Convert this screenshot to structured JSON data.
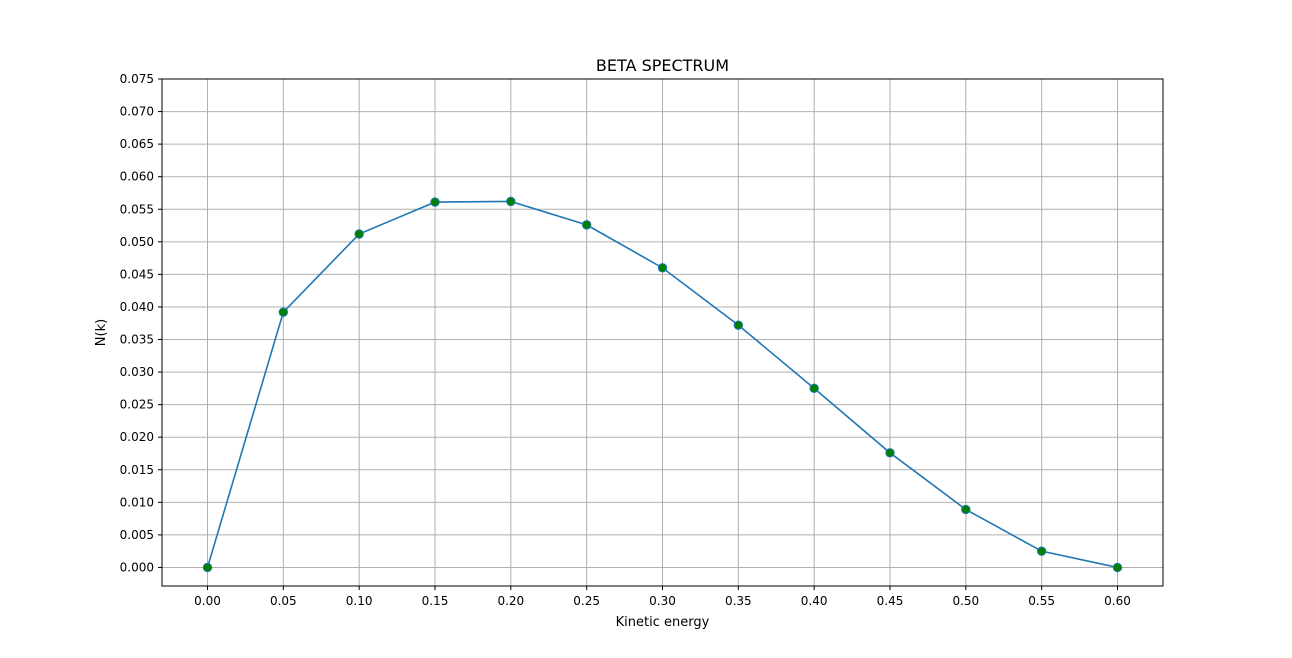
{
  "chart_data": {
    "type": "line",
    "title": "BETA SPECTRUM",
    "xlabel": "Kinetic energy",
    "ylabel": "N(k)",
    "xlim": [
      -0.03,
      0.63
    ],
    "ylim": [
      -0.00285,
      0.075
    ],
    "x_ticks": [
      "0.00",
      "0.05",
      "0.10",
      "0.15",
      "0.20",
      "0.25",
      "0.30",
      "0.35",
      "0.40",
      "0.45",
      "0.50",
      "0.55",
      "0.60"
    ],
    "y_ticks": [
      "0.000",
      "0.005",
      "0.010",
      "0.015",
      "0.020",
      "0.025",
      "0.030",
      "0.035",
      "0.040",
      "0.045",
      "0.050",
      "0.055",
      "0.060",
      "0.065",
      "0.070",
      "0.075"
    ],
    "grid": true,
    "series": [
      {
        "x": [
          0.0,
          0.05,
          0.1,
          0.15,
          0.2,
          0.25,
          0.3,
          0.35,
          0.4,
          0.45,
          0.5,
          0.55,
          0.6
        ],
        "y": [
          0.0,
          0.0392,
          0.0512,
          0.0561,
          0.0562,
          0.0526,
          0.046,
          0.0372,
          0.0275,
          0.0176,
          0.0089,
          0.0025,
          0.0
        ],
        "line_color": "#1f77b4",
        "marker_color": "#008000"
      }
    ],
    "colors": {
      "grid": "#b0b0b0",
      "axes": "#000000"
    }
  }
}
